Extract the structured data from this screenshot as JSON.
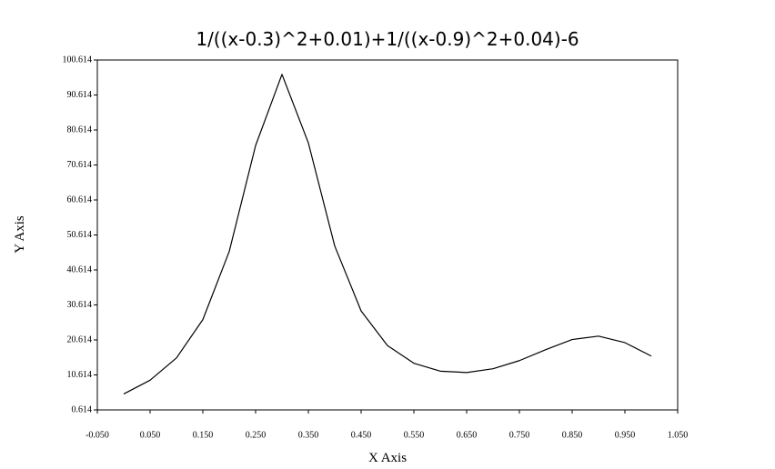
{
  "chart_data": {
    "type": "line",
    "title": "1/((x-0.3)^2+0.01)+1/((x-0.9)^2+0.04)-6",
    "x_label": "X Axis",
    "y_label": "Y Axis",
    "x": [
      0,
      0.05,
      0.1,
      0.15,
      0.2,
      0.25,
      0.3,
      0.35,
      0.4,
      0.45,
      0.5,
      0.55,
      0.6,
      0.65,
      0.7,
      0.75,
      0.8,
      0.85,
      0.9,
      0.95,
      1.0
    ],
    "series": [
      {
        "color": "#000000",
        "values": [
          5.176,
          9.104,
          15.471,
          26.429,
          45.887,
          76.162,
          96.5,
          76.92,
          47.448,
          28.893,
          19,
          13.947,
          11.692,
          11.303,
          12.382,
          14.706,
          17.846,
          20.729,
          21.703,
          19.841,
          16
        ]
      }
    ],
    "xlim": [
      -0.05,
      1.05
    ],
    "xticks": [
      {
        "value": -0.05,
        "label": "-0.050"
      },
      {
        "value": 0.05,
        "label": "0.050"
      },
      {
        "value": 0.15,
        "label": "0.150"
      },
      {
        "value": 0.25,
        "label": "0.250"
      },
      {
        "value": 0.35,
        "label": "0.350"
      },
      {
        "value": 0.45,
        "label": "0.450"
      },
      {
        "value": 0.55,
        "label": "0.550"
      },
      {
        "value": 0.65,
        "label": "0.650"
      },
      {
        "value": 0.75,
        "label": "0.750"
      },
      {
        "value": 0.85,
        "label": "0.850"
      },
      {
        "value": 0.95,
        "label": "0.950"
      },
      {
        "value": 1.05,
        "label": "1.050"
      }
    ],
    "ylim": [
      0.614,
      100.614
    ],
    "yticks": [
      0.614,
      10.614,
      20.614,
      30.614,
      40.614,
      50.614,
      60.614,
      70.614,
      80.614,
      90.614,
      100.614
    ],
    "grid": false
  }
}
